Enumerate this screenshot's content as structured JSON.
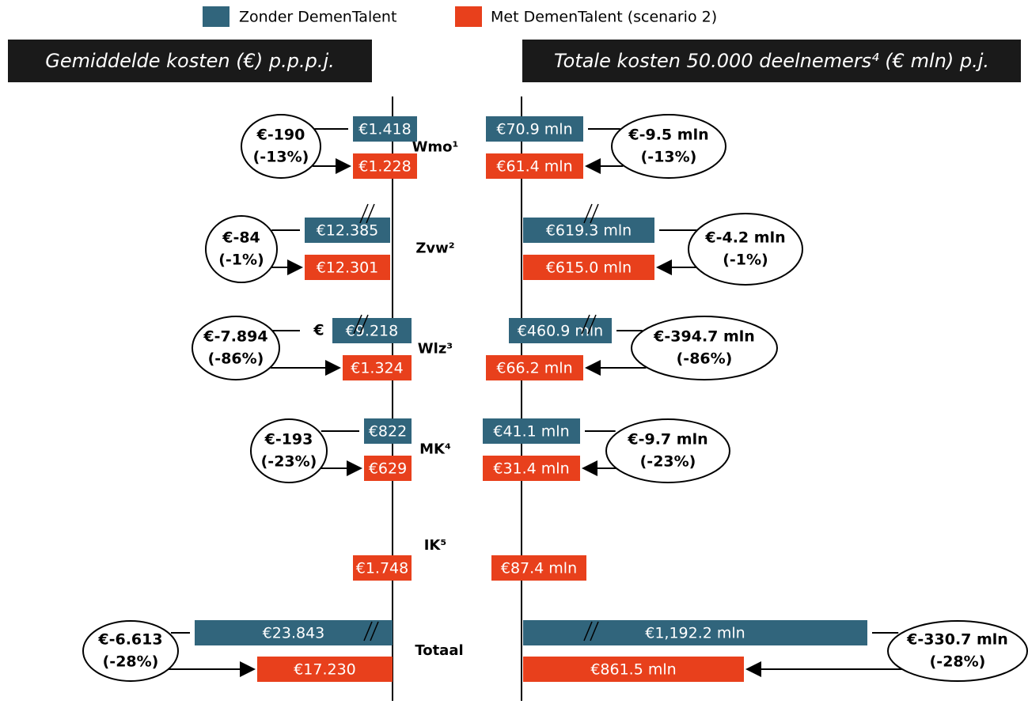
{
  "legend": [
    "Zonder DemenTalent",
    "Met DemenTalent (scenario 2)"
  ],
  "left_title": "Gemiddelde kosten (€) p.p.p.j.",
  "right_title": "Totale kosten 50.000 deelnemers⁴ (€ mln) p.j.",
  "rows": [
    {
      "label": "Wmo¹",
      "left": {
        "without": "€1.418",
        "with": "€1.228",
        "diff": "€-190",
        "pct": "(-13%)"
      },
      "right": {
        "without": "€70.9 mln",
        "with": "€61.4 mln",
        "diff": "€-9.5 mln",
        "pct": "(-13%)"
      }
    },
    {
      "label": "Zvw²",
      "left": {
        "without": "€12.385",
        "with": "€12.301",
        "diff": "€-84",
        "pct": "(-1%)"
      },
      "right": {
        "without": "€619.3 mln",
        "with": "€615.0 mln",
        "diff": "€-4.2 mln",
        "pct": "(-1%)"
      }
    },
    {
      "label": "Wlz³",
      "left": {
        "prefix": "€",
        "without": "€9.218",
        "with": "€1.324",
        "diff": "€-7.894",
        "pct": "(-86%)"
      },
      "right": {
        "without": "€460.9 mln",
        "with": "€66.2 mln",
        "diff": "€-394.7 mln",
        "pct": "(-86%)"
      }
    },
    {
      "label": "MK⁴",
      "left": {
        "without": "€822",
        "with": "€629",
        "diff": "€-193",
        "pct": "(-23%)"
      },
      "right": {
        "without": "€41.1 mln",
        "with": "€31.4 mln",
        "diff": "€-9.7 mln",
        "pct": "(-23%)"
      }
    },
    {
      "label": "IK⁵",
      "left": {
        "with": "€1.748"
      },
      "right": {
        "with": "€87.4 mln"
      }
    },
    {
      "label": "Totaal",
      "left": {
        "without": "€23.843",
        "with": "€17.230",
        "diff": "€-6.613",
        "pct": "(-28%)"
      },
      "right": {
        "without": "€1,192.2 mln",
        "with": "€861.5 mln",
        "diff": "€-330.7 mln",
        "pct": "(-28%)"
      }
    }
  ]
}
